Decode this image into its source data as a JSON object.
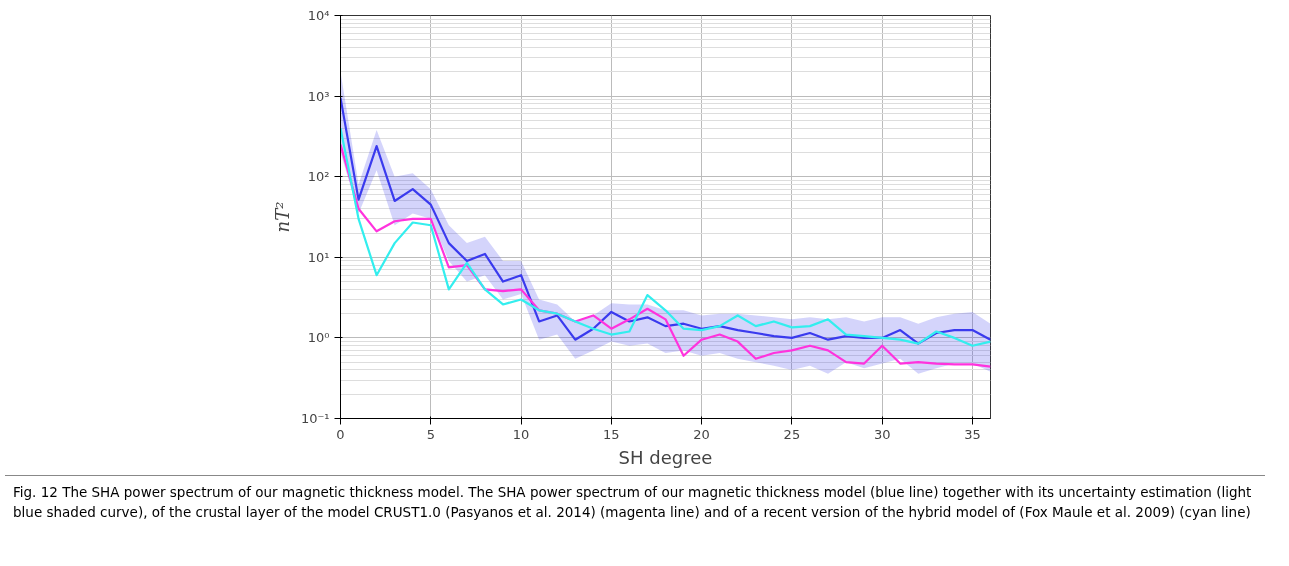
{
  "chart_data": {
    "type": "line",
    "xlabel": "SH degree",
    "ylabel": "nT²",
    "log": "y",
    "grid": true,
    "x": [
      0,
      1,
      2,
      3,
      4,
      5,
      6,
      7,
      8,
      9,
      10,
      11,
      12,
      13,
      14,
      15,
      16,
      17,
      18,
      19,
      20,
      21,
      22,
      23,
      24,
      25,
      26,
      27,
      28,
      29,
      30,
      31,
      32,
      33,
      34,
      35,
      36
    ],
    "xlim": [
      0,
      36
    ],
    "xticks": [
      0,
      5,
      10,
      15,
      20,
      25,
      30,
      35
    ],
    "ylim": [
      0.1,
      10000
    ],
    "yticks": [
      {
        "value": 0.1,
        "label": "10⁻¹"
      },
      {
        "value": 1,
        "label": "10⁰"
      },
      {
        "value": 10,
        "label": "10¹"
      },
      {
        "value": 100,
        "label": "10²"
      },
      {
        "value": 1000,
        "label": "10³"
      },
      {
        "value": 10000,
        "label": "10⁴"
      }
    ],
    "series": [
      {
        "color": "#3a3aee",
        "values": [
          950,
          52,
          240,
          50,
          70,
          45,
          15,
          9,
          11,
          5,
          6,
          1.6,
          1.9,
          0.95,
          1.3,
          2.1,
          1.6,
          1.8,
          1.4,
          1.5,
          1.3,
          1.4,
          1.25,
          1.15,
          1.05,
          1.0,
          1.15,
          0.95,
          1.05,
          1.0,
          1.0,
          1.25,
          0.85,
          1.15,
          1.25,
          1.25,
          0.95
        ],
        "lower": [
          200,
          35,
          120,
          25,
          35,
          30,
          9,
          5,
          6,
          3,
          3.5,
          0.95,
          1.1,
          0.55,
          0.7,
          0.9,
          0.8,
          0.85,
          0.65,
          0.7,
          0.6,
          0.65,
          0.55,
          0.5,
          0.45,
          0.4,
          0.45,
          0.36,
          0.5,
          0.42,
          0.48,
          0.55,
          0.36,
          0.42,
          0.48,
          0.48,
          0.38
        ],
        "upper": [
          2000,
          80,
          380,
          100,
          110,
          70,
          25,
          15,
          18,
          9,
          9,
          3,
          2.6,
          1.6,
          1.9,
          2.7,
          2.6,
          2.6,
          2.2,
          2.2,
          1.9,
          2.0,
          2.0,
          1.9,
          1.8,
          1.7,
          1.8,
          1.7,
          1.8,
          1.6,
          1.8,
          1.8,
          1.5,
          1.8,
          2.0,
          2.1,
          1.5
        ]
      },
      {
        "color": "#ff33dd",
        "values": [
          250,
          40,
          21,
          28,
          30,
          30,
          7.5,
          8,
          4,
          3.8,
          4,
          2.2,
          2.0,
          1.6,
          1.9,
          1.3,
          1.7,
          2.3,
          1.7,
          0.6,
          0.95,
          1.1,
          0.9,
          0.55,
          0.65,
          0.7,
          0.8,
          0.7,
          0.5,
          0.48,
          0.8,
          0.48,
          0.5,
          0.48,
          0.47,
          0.47,
          0.44
        ]
      },
      {
        "color": "#33eeee",
        "values": [
          400,
          30,
          6,
          15,
          27,
          25,
          4,
          8.5,
          4,
          2.6,
          3,
          2.2,
          2.0,
          1.6,
          1.3,
          1.1,
          1.2,
          3.4,
          2.2,
          1.3,
          1.25,
          1.4,
          1.9,
          1.4,
          1.6,
          1.35,
          1.4,
          1.7,
          1.1,
          1.05,
          1.0,
          0.95,
          0.85,
          1.2,
          1.0,
          0.8,
          0.9
        ]
      }
    ],
    "annotations": [
      "Fig. 12 The SHA power spectrum of our magnetic thickness model. The SHA power spectrum of our magnetic thickness model (blue line) together with its uncertainty estimation (light blue shaded curve), of the crustal layer of the model CRUST1.0 (Pasyanos et al. 2014) (magenta line) and of a recent version of the hybrid model of (Fox Maule et al. 2009) (cyan line)"
    ]
  }
}
